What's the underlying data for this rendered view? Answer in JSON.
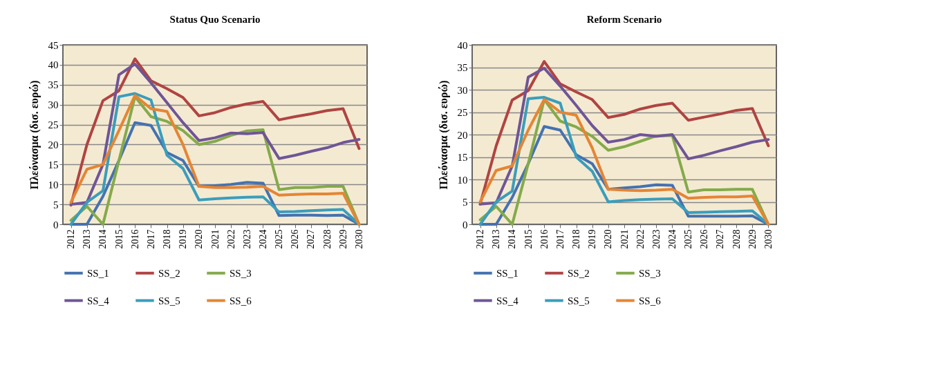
{
  "chart_data": [
    {
      "type": "line",
      "title": "Status Quo Scenario",
      "ylabel": "Πλεόνασμα (δισ. ευρώ)",
      "categories": [
        "2012",
        "2013",
        "2014",
        "2015",
        "2016",
        "2017",
        "2018",
        "2019",
        "2020",
        "2021",
        "2022",
        "2023",
        "2024",
        "2025",
        "2026",
        "2027",
        "2028",
        "2029",
        "2030"
      ],
      "ylim": [
        0,
        45
      ],
      "yticks": [
        0,
        5,
        10,
        15,
        20,
        25,
        30,
        35,
        40,
        45
      ],
      "grid": "y",
      "legend": "bottom",
      "series": [
        {
          "name": "SS_1",
          "color": "#4472b0",
          "values": [
            0,
            0,
            7,
            16,
            25.5,
            24.8,
            18,
            16,
            9.5,
            9.7,
            10,
            10.5,
            10.3,
            2.2,
            2.3,
            2.3,
            2.2,
            2.3,
            0
          ]
        },
        {
          "name": "SS_2",
          "color": "#b04442",
          "values": [
            4.8,
            20,
            31,
            33.5,
            41.5,
            36,
            34,
            31.8,
            27.2,
            28,
            29.3,
            30.2,
            30.8,
            26.2,
            27,
            27.7,
            28.5,
            29,
            19
          ]
        },
        {
          "name": "SS_3",
          "color": "#84aa4a",
          "values": [
            1,
            4.5,
            0,
            16,
            32,
            27,
            25.8,
            23.5,
            20,
            20.8,
            22.3,
            23.4,
            23.7,
            8.7,
            9.2,
            9.2,
            9.5,
            9.5,
            0
          ]
        },
        {
          "name": "SS_4",
          "color": "#6f5596",
          "values": [
            5,
            5.5,
            15,
            37.5,
            40.2,
            35.5,
            30.5,
            25.5,
            21,
            21.7,
            22.9,
            22.7,
            23,
            16.5,
            17.3,
            18.3,
            19.2,
            20.5,
            21.3
          ]
        },
        {
          "name": "SS_5",
          "color": "#3a9dbb",
          "values": [
            0,
            5.5,
            8.4,
            32,
            32.8,
            31.2,
            17.3,
            14,
            6.1,
            6.4,
            6.6,
            6.8,
            6.9,
            3.1,
            3.2,
            3.4,
            3.6,
            3.7,
            0
          ]
        },
        {
          "name": "SS_6",
          "color": "#e58534",
          "values": [
            5.5,
            13.8,
            15,
            23.5,
            32.3,
            29,
            28.3,
            20,
            9.5,
            9.2,
            9.2,
            9.3,
            9.5,
            7.3,
            7.5,
            7.6,
            7.6,
            7.8,
            0
          ]
        }
      ]
    },
    {
      "type": "line",
      "title": "Reform Scenario",
      "ylabel": "Πλεόνασμα (δισ. ευρώ)",
      "categories": [
        "2012",
        "2013",
        "2014",
        "2015",
        "2016",
        "2017",
        "2018",
        "2019",
        "2020",
        "2021",
        "2022",
        "2023",
        "2024",
        "2025",
        "2026",
        "2027",
        "2028",
        "2029",
        "2030"
      ],
      "ylim": [
        0,
        40
      ],
      "yticks": [
        0,
        5,
        10,
        15,
        20,
        25,
        30,
        35,
        40
      ],
      "grid": "y",
      "legend": "bottom",
      "series": [
        {
          "name": "SS_1",
          "color": "#4472b0",
          "values": [
            0,
            0,
            6,
            13.5,
            21.8,
            21,
            15.5,
            13.5,
            7.8,
            8.1,
            8.4,
            8.8,
            8.7,
            1.8,
            1.8,
            1.8,
            1.8,
            1.9,
            0
          ]
        },
        {
          "name": "SS_2",
          "color": "#b04442",
          "values": [
            4.5,
            17.5,
            27.7,
            29.8,
            36.3,
            31.3,
            29.5,
            27.8,
            23.8,
            24.5,
            25.7,
            26.5,
            27,
            23.2,
            23.9,
            24.6,
            25.4,
            25.8,
            17.5
          ]
        },
        {
          "name": "SS_3",
          "color": "#84aa4a",
          "values": [
            1,
            4,
            0,
            13.5,
            27.8,
            23,
            21.7,
            19.6,
            16.5,
            17.3,
            18.5,
            19.7,
            19.8,
            7.2,
            7.7,
            7.7,
            7.8,
            7.8,
            0
          ]
        },
        {
          "name": "SS_4",
          "color": "#6f5596",
          "values": [
            4.5,
            4.8,
            13,
            32.8,
            34.8,
            30.8,
            26.5,
            22,
            18.3,
            18.9,
            20,
            19.6,
            20,
            14.6,
            15.4,
            16.4,
            17.3,
            18.3,
            18.9
          ]
        },
        {
          "name": "SS_5",
          "color": "#3a9dbb",
          "values": [
            0,
            5,
            7.4,
            28,
            28.3,
            27,
            15,
            11.8,
            5,
            5.3,
            5.5,
            5.6,
            5.7,
            2.6,
            2.7,
            2.8,
            2.9,
            3,
            0
          ]
        },
        {
          "name": "SS_6",
          "color": "#e58534",
          "values": [
            5,
            12,
            13,
            21,
            27.8,
            25,
            24.3,
            17,
            7.8,
            7.6,
            7.5,
            7.6,
            7.8,
            5.8,
            6,
            6.1,
            6.1,
            6.3,
            0
          ]
        }
      ]
    }
  ]
}
